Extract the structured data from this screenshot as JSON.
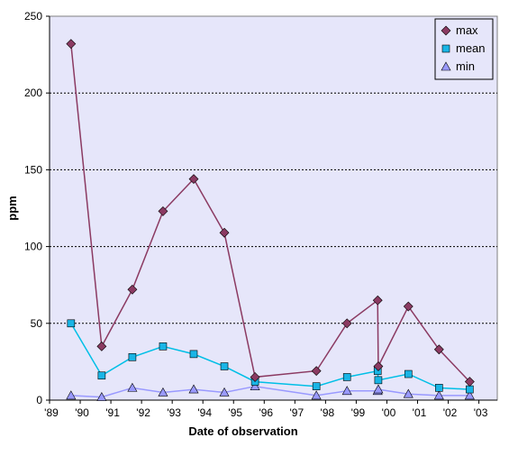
{
  "chart_data": {
    "type": "line",
    "xlabel": "Date of observation",
    "ylabel": "ppm",
    "ylim": [
      0,
      250
    ],
    "yticks": [
      0,
      50,
      100,
      150,
      200,
      250
    ],
    "xlim": [
      1989,
      2003.6
    ],
    "xticks": [
      {
        "year": 1989,
        "label": "'89"
      },
      {
        "year": 1990,
        "label": "'90"
      },
      {
        "year": 1991,
        "label": "'91"
      },
      {
        "year": 1992,
        "label": "'92"
      },
      {
        "year": 1993,
        "label": "'93"
      },
      {
        "year": 1994,
        "label": "'94"
      },
      {
        "year": 1995,
        "label": "'95"
      },
      {
        "year": 1996,
        "label": "'96"
      },
      {
        "year": 1997,
        "label": "'97"
      },
      {
        "year": 1998,
        "label": "'98"
      },
      {
        "year": 1999,
        "label": "'99"
      },
      {
        "year": 2000,
        "label": "'00"
      },
      {
        "year": 2001,
        "label": "'01"
      },
      {
        "year": 2002,
        "label": "'02"
      },
      {
        "year": 2003,
        "label": "'03"
      }
    ],
    "grid": "horizontal-dotted",
    "legend_position": "top-right",
    "plot_background": "#E6E6FA",
    "series": [
      {
        "name": "max",
        "color": "#8B3A62",
        "marker": "diamond",
        "points": [
          [
            1989.7,
            232
          ],
          [
            1990.7,
            35
          ],
          [
            1991.7,
            72
          ],
          [
            1992.7,
            123
          ],
          [
            1993.7,
            144
          ],
          [
            1994.7,
            109
          ],
          [
            1995.7,
            15
          ],
          [
            1997.7,
            19
          ],
          [
            1998.7,
            50
          ],
          [
            1999.7,
            65
          ],
          [
            1999.72,
            22
          ],
          [
            2000.7,
            61
          ],
          [
            2001.7,
            33
          ],
          [
            2002.7,
            12
          ]
        ]
      },
      {
        "name": "mean",
        "color": "#00BFE6",
        "marker": "square",
        "points": [
          [
            1989.7,
            50
          ],
          [
            1990.7,
            16
          ],
          [
            1991.7,
            28
          ],
          [
            1992.7,
            35
          ],
          [
            1993.7,
            30
          ],
          [
            1994.7,
            22
          ],
          [
            1995.7,
            12
          ],
          [
            1997.7,
            9
          ],
          [
            1998.7,
            15
          ],
          [
            1999.7,
            19
          ],
          [
            1999.72,
            13
          ],
          [
            2000.7,
            17
          ],
          [
            2001.7,
            8
          ],
          [
            2002.7,
            7
          ]
        ]
      },
      {
        "name": "min",
        "color": "#9999FF",
        "marker": "triangle",
        "points": [
          [
            1989.7,
            3
          ],
          [
            1990.7,
            2
          ],
          [
            1991.7,
            8
          ],
          [
            1992.7,
            5
          ],
          [
            1993.7,
            7
          ],
          [
            1994.7,
            5
          ],
          [
            1995.7,
            9
          ],
          [
            1997.7,
            3
          ],
          [
            1998.7,
            6
          ],
          [
            1999.7,
            6
          ],
          [
            1999.72,
            7
          ],
          [
            2000.7,
            4
          ],
          [
            2001.7,
            3
          ],
          [
            2002.7,
            3
          ]
        ]
      }
    ]
  }
}
